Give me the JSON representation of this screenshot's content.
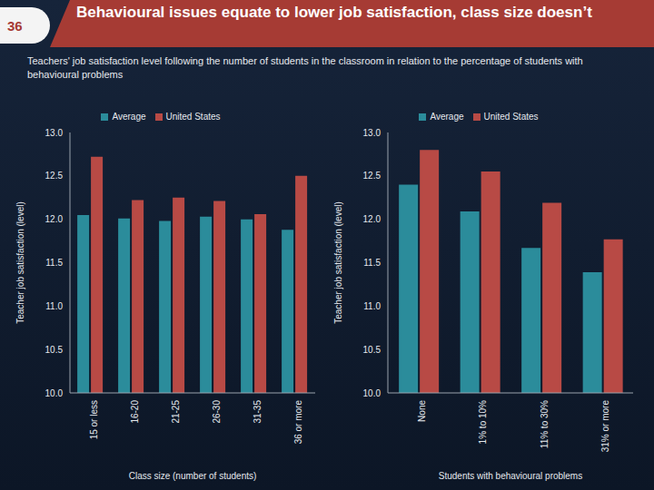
{
  "slide_number": "36",
  "title": "Behavioural issues equate to lower job satisfaction, class size doesn’t",
  "subtitle": "Teachers' job satisfaction level following the number of students in the classroom  in relation to the percentage of students with behavioural problems",
  "chart_data": [
    {
      "type": "bar",
      "x_label": "Class size (number of students)",
      "y_label": "Teacher job satisfaction (level)",
      "categories": [
        "15 or less",
        "16-20",
        "21-25",
        "26-30",
        "31-35",
        "36 or more"
      ],
      "series": [
        {
          "name": "Average",
          "color": "#2b8c9b",
          "values": [
            12.05,
            12.01,
            11.98,
            12.03,
            12.0,
            11.88
          ]
        },
        {
          "name": "United States",
          "color": "#b84a45",
          "values": [
            12.72,
            12.22,
            12.25,
            12.21,
            12.06,
            12.5
          ]
        }
      ],
      "ylim": [
        10,
        13
      ],
      "yticks": [
        {
          "value": 10,
          "label": "10.0"
        },
        {
          "value": 10.5,
          "label": "10.5"
        },
        {
          "value": 11,
          "label": "11.0"
        },
        {
          "value": 11.5,
          "label": "11.5"
        },
        {
          "value": 12,
          "label": "12.0"
        },
        {
          "value": 12.5,
          "label": "12.5"
        },
        {
          "value": 13,
          "label": "13.0"
        }
      ],
      "grid": false,
      "legend": "top"
    },
    {
      "type": "bar",
      "x_label": "Students with behavioural problems",
      "y_label": "Teacher job satisfaction (level)",
      "categories": [
        "None",
        "1% to 10%",
        "11% to 30%",
        "31% or more"
      ],
      "series": [
        {
          "name": "Average",
          "color": "#2b8c9b",
          "values": [
            12.4,
            12.09,
            11.67,
            11.39
          ]
        },
        {
          "name": "United States",
          "color": "#b84a45",
          "values": [
            12.8,
            12.55,
            12.19,
            11.77
          ]
        }
      ],
      "ylim": [
        10,
        13
      ],
      "yticks": [
        {
          "value": 10,
          "label": "10.0"
        },
        {
          "value": 10.5,
          "label": "10.5"
        },
        {
          "value": 11,
          "label": "11.0"
        },
        {
          "value": 11.5,
          "label": "11.5"
        },
        {
          "value": 12,
          "label": "12.0"
        },
        {
          "value": 12.5,
          "label": "12.5"
        },
        {
          "value": 13,
          "label": "13.0"
        }
      ],
      "grid": false,
      "legend": "top"
    }
  ]
}
